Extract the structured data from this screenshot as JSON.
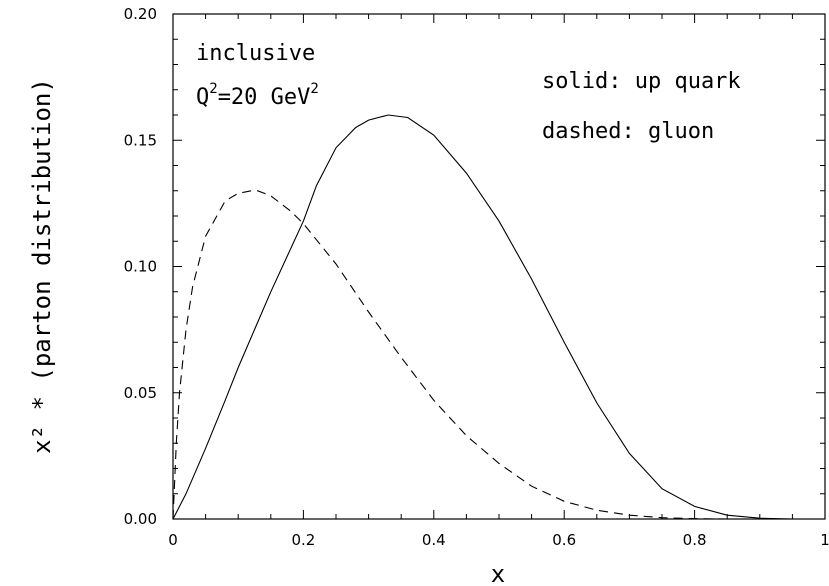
{
  "chart_data": {
    "type": "line",
    "xlabel": "x",
    "ylabel": "x² * (parton distribution)",
    "xlim": [
      0,
      1
    ],
    "ylim": [
      0,
      0.2
    ],
    "x_ticks": [
      0,
      0.2,
      0.4,
      0.6,
      0.8,
      1
    ],
    "x_tick_labels": [
      "0",
      "0.2",
      "0.4",
      "0.6",
      "0.8",
      "1"
    ],
    "y_ticks": [
      0,
      0.05,
      0.1,
      0.15,
      0.2
    ],
    "y_tick_labels": [
      "0.00",
      "0.05",
      "0.10",
      "0.15",
      "0.20"
    ],
    "grid": false,
    "annotations": {
      "process": "inclusive",
      "scale_prefix": "Q",
      "scale_exp": "2",
      "scale_mid": "=20 GeV",
      "scale_exp2": "2",
      "solid_label": "solid: up quark",
      "dashed_label": "dashed: gluon"
    },
    "series": [
      {
        "style": "solid",
        "x": [
          0,
          0.02,
          0.05,
          0.08,
          0.1,
          0.15,
          0.2,
          0.22,
          0.25,
          0.28,
          0.3,
          0.33,
          0.36,
          0.4,
          0.45,
          0.5,
          0.55,
          0.6,
          0.65,
          0.7,
          0.75,
          0.8,
          0.85,
          0.9,
          0.95,
          1.0
        ],
        "y": [
          0,
          0.01,
          0.028,
          0.047,
          0.06,
          0.09,
          0.118,
          0.132,
          0.147,
          0.155,
          0.158,
          0.16,
          0.159,
          0.152,
          0.137,
          0.118,
          0.095,
          0.07,
          0.046,
          0.026,
          0.012,
          0.005,
          0.0015,
          0.0003,
          0,
          0
        ]
      },
      {
        "style": "dashed",
        "x": [
          0,
          0.005,
          0.01,
          0.02,
          0.03,
          0.05,
          0.08,
          0.1,
          0.12,
          0.13,
          0.15,
          0.18,
          0.2,
          0.25,
          0.3,
          0.35,
          0.4,
          0.45,
          0.5,
          0.55,
          0.6,
          0.65,
          0.7,
          0.75,
          0.8,
          0.85
        ],
        "y": [
          0,
          0.03,
          0.05,
          0.075,
          0.092,
          0.112,
          0.126,
          0.129,
          0.13,
          0.13,
          0.128,
          0.122,
          0.117,
          0.101,
          0.082,
          0.064,
          0.047,
          0.033,
          0.022,
          0.013,
          0.007,
          0.0035,
          0.0015,
          0.0005,
          0.0001,
          0
        ]
      }
    ]
  }
}
